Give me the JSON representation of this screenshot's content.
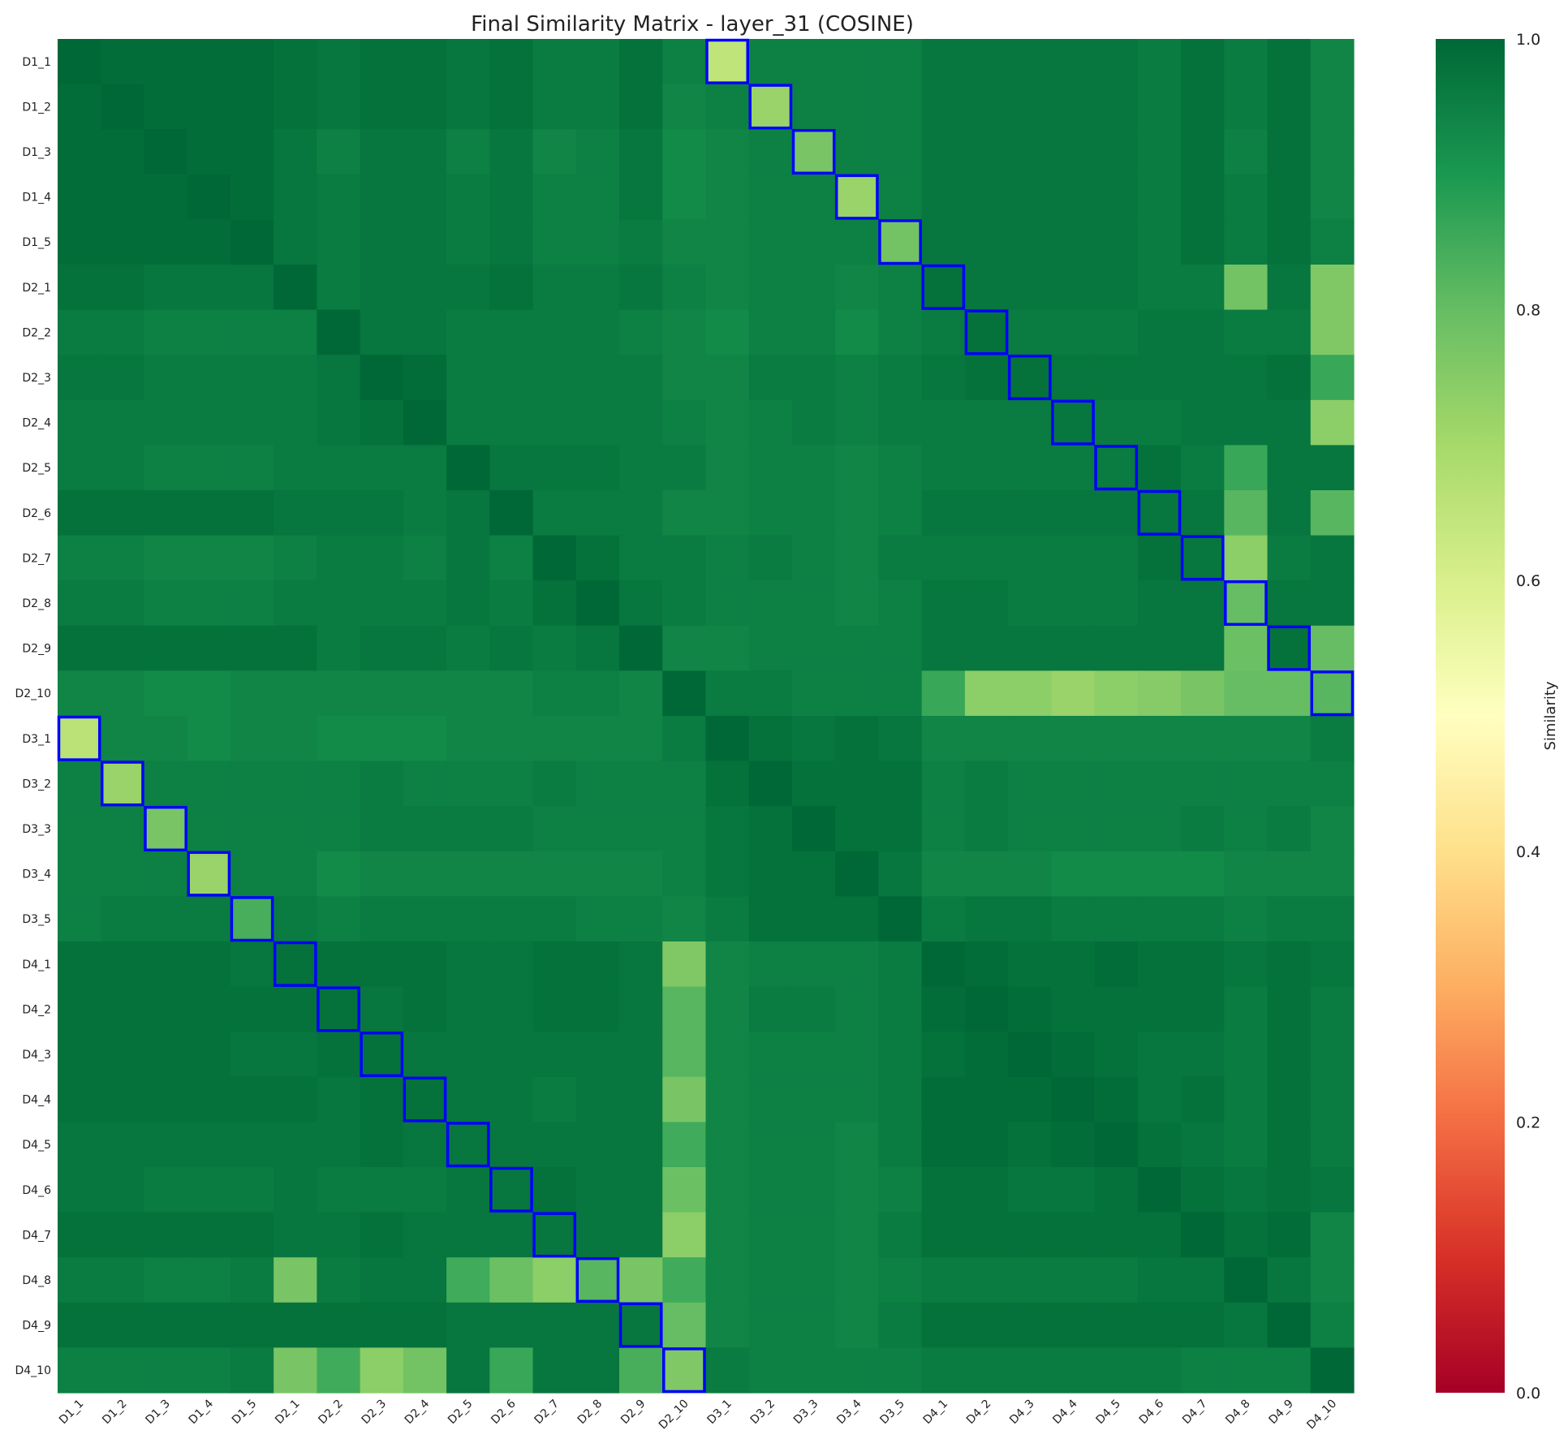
{
  "chart_data": {
    "type": "heatmap",
    "title": "Final Similarity Matrix - layer_31 (COSINE)",
    "x_labels": [
      "D1_1",
      "D1_2",
      "D1_3",
      "D1_4",
      "D1_5",
      "D2_1",
      "D2_2",
      "D2_3",
      "D2_4",
      "D2_5",
      "D2_6",
      "D2_7",
      "D2_8",
      "D2_9",
      "D2_10",
      "D3_1",
      "D3_2",
      "D3_3",
      "D3_4",
      "D3_5",
      "D4_1",
      "D4_2",
      "D4_3",
      "D4_4",
      "D4_5",
      "D4_6",
      "D4_7",
      "D4_8",
      "D4_9",
      "D4_10"
    ],
    "y_labels": [
      "D1_1",
      "D1_2",
      "D1_3",
      "D1_4",
      "D1_5",
      "D2_1",
      "D2_2",
      "D2_3",
      "D2_4",
      "D2_5",
      "D2_6",
      "D2_7",
      "D2_8",
      "D2_9",
      "D2_10",
      "D3_1",
      "D3_2",
      "D3_3",
      "D3_4",
      "D3_5",
      "D4_1",
      "D4_2",
      "D4_3",
      "D4_4",
      "D4_5",
      "D4_6",
      "D4_7",
      "D4_8",
      "D4_9",
      "D4_10"
    ],
    "values": [
      [
        1.0,
        0.99,
        0.99,
        0.99,
        0.99,
        0.98,
        0.97,
        0.98,
        0.98,
        0.97,
        0.98,
        0.96,
        0.96,
        0.98,
        0.95,
        0.65,
        0.95,
        0.95,
        0.95,
        0.95,
        0.97,
        0.97,
        0.97,
        0.97,
        0.97,
        0.96,
        0.98,
        0.96,
        0.98,
        0.94
      ],
      [
        0.99,
        1.0,
        0.99,
        0.99,
        0.99,
        0.98,
        0.97,
        0.98,
        0.98,
        0.97,
        0.98,
        0.96,
        0.96,
        0.98,
        0.94,
        0.95,
        0.72,
        0.95,
        0.95,
        0.95,
        0.97,
        0.97,
        0.97,
        0.97,
        0.97,
        0.96,
        0.98,
        0.96,
        0.98,
        0.94
      ],
      [
        0.99,
        0.99,
        1.0,
        0.99,
        0.99,
        0.97,
        0.95,
        0.97,
        0.97,
        0.95,
        0.97,
        0.94,
        0.95,
        0.97,
        0.93,
        0.94,
        0.95,
        0.77,
        0.95,
        0.95,
        0.97,
        0.97,
        0.97,
        0.97,
        0.97,
        0.96,
        0.98,
        0.95,
        0.98,
        0.94
      ],
      [
        0.99,
        0.99,
        0.99,
        1.0,
        0.99,
        0.97,
        0.96,
        0.97,
        0.97,
        0.96,
        0.97,
        0.95,
        0.95,
        0.97,
        0.93,
        0.94,
        0.95,
        0.95,
        0.72,
        0.95,
        0.97,
        0.97,
        0.97,
        0.97,
        0.97,
        0.96,
        0.98,
        0.96,
        0.98,
        0.94
      ],
      [
        0.99,
        0.99,
        0.99,
        0.99,
        1.0,
        0.97,
        0.96,
        0.97,
        0.97,
        0.96,
        0.97,
        0.95,
        0.95,
        0.96,
        0.94,
        0.94,
        0.95,
        0.95,
        0.95,
        0.78,
        0.97,
        0.97,
        0.97,
        0.97,
        0.97,
        0.96,
        0.98,
        0.96,
        0.98,
        0.95
      ],
      [
        0.98,
        0.98,
        0.97,
        0.97,
        0.97,
        1.0,
        0.96,
        0.97,
        0.97,
        0.97,
        0.98,
        0.96,
        0.96,
        0.97,
        0.95,
        0.94,
        0.95,
        0.95,
        0.94,
        0.95,
        0.98,
        0.97,
        0.97,
        0.97,
        0.97,
        0.96,
        0.96,
        0.78,
        0.97,
        0.76
      ],
      [
        0.96,
        0.96,
        0.95,
        0.95,
        0.95,
        0.95,
        1.0,
        0.97,
        0.97,
        0.96,
        0.96,
        0.96,
        0.96,
        0.95,
        0.94,
        0.93,
        0.95,
        0.95,
        0.93,
        0.95,
        0.96,
        0.98,
        0.96,
        0.96,
        0.96,
        0.97,
        0.97,
        0.96,
        0.96,
        0.76
      ],
      [
        0.97,
        0.97,
        0.96,
        0.96,
        0.96,
        0.96,
        0.97,
        1.0,
        0.99,
        0.96,
        0.96,
        0.96,
        0.96,
        0.96,
        0.94,
        0.94,
        0.96,
        0.96,
        0.95,
        0.96,
        0.97,
        0.98,
        0.98,
        0.97,
        0.97,
        0.97,
        0.97,
        0.97,
        0.98,
        0.86
      ],
      [
        0.96,
        0.96,
        0.96,
        0.96,
        0.96,
        0.96,
        0.97,
        0.98,
        1.0,
        0.96,
        0.96,
        0.96,
        0.96,
        0.96,
        0.95,
        0.94,
        0.95,
        0.96,
        0.95,
        0.96,
        0.96,
        0.96,
        0.96,
        0.97,
        0.96,
        0.96,
        0.97,
        0.97,
        0.97,
        0.74
      ],
      [
        0.96,
        0.96,
        0.95,
        0.95,
        0.95,
        0.96,
        0.96,
        0.96,
        0.96,
        1.0,
        0.97,
        0.97,
        0.97,
        0.96,
        0.96,
        0.94,
        0.95,
        0.95,
        0.94,
        0.95,
        0.96,
        0.96,
        0.96,
        0.96,
        0.96,
        0.98,
        0.96,
        0.86,
        0.97,
        0.97
      ],
      [
        0.98,
        0.98,
        0.98,
        0.98,
        0.98,
        0.97,
        0.97,
        0.97,
        0.96,
        0.97,
        1.0,
        0.96,
        0.96,
        0.96,
        0.94,
        0.94,
        0.95,
        0.95,
        0.94,
        0.95,
        0.97,
        0.97,
        0.97,
        0.97,
        0.97,
        0.97,
        0.97,
        0.82,
        0.97,
        0.82
      ],
      [
        0.95,
        0.95,
        0.94,
        0.94,
        0.94,
        0.95,
        0.96,
        0.96,
        0.95,
        0.97,
        0.95,
        1.0,
        0.98,
        0.96,
        0.96,
        0.95,
        0.96,
        0.95,
        0.94,
        0.96,
        0.96,
        0.96,
        0.96,
        0.96,
        0.96,
        0.98,
        0.97,
        0.74,
        0.96,
        0.97
      ],
      [
        0.96,
        0.96,
        0.95,
        0.95,
        0.95,
        0.96,
        0.96,
        0.96,
        0.96,
        0.97,
        0.96,
        0.98,
        1.0,
        0.97,
        0.96,
        0.95,
        0.95,
        0.95,
        0.94,
        0.95,
        0.97,
        0.97,
        0.96,
        0.96,
        0.96,
        0.97,
        0.97,
        0.8,
        0.97,
        0.97
      ],
      [
        0.98,
        0.98,
        0.98,
        0.98,
        0.98,
        0.98,
        0.96,
        0.97,
        0.97,
        0.96,
        0.97,
        0.96,
        0.97,
        1.0,
        0.94,
        0.94,
        0.95,
        0.95,
        0.95,
        0.95,
        0.97,
        0.97,
        0.97,
        0.97,
        0.97,
        0.97,
        0.97,
        0.79,
        0.98,
        0.8
      ],
      [
        0.94,
        0.94,
        0.93,
        0.93,
        0.94,
        0.94,
        0.94,
        0.94,
        0.94,
        0.94,
        0.94,
        0.95,
        0.95,
        0.94,
        1.0,
        0.96,
        0.96,
        0.95,
        0.95,
        0.95,
        0.86,
        0.74,
        0.74,
        0.72,
        0.74,
        0.75,
        0.77,
        0.8,
        0.8,
        0.82
      ],
      [
        0.66,
        0.94,
        0.94,
        0.93,
        0.94,
        0.94,
        0.93,
        0.93,
        0.93,
        0.94,
        0.94,
        0.94,
        0.94,
        0.94,
        0.96,
        1.0,
        0.98,
        0.97,
        0.98,
        0.97,
        0.94,
        0.94,
        0.94,
        0.94,
        0.94,
        0.94,
        0.94,
        0.94,
        0.94,
        0.96
      ],
      [
        0.95,
        0.72,
        0.95,
        0.95,
        0.95,
        0.95,
        0.95,
        0.96,
        0.95,
        0.95,
        0.95,
        0.96,
        0.95,
        0.95,
        0.95,
        0.98,
        1.0,
        0.98,
        0.98,
        0.98,
        0.95,
        0.96,
        0.95,
        0.95,
        0.95,
        0.95,
        0.95,
        0.95,
        0.95,
        0.95
      ],
      [
        0.95,
        0.95,
        0.77,
        0.95,
        0.95,
        0.95,
        0.95,
        0.96,
        0.96,
        0.96,
        0.96,
        0.95,
        0.95,
        0.95,
        0.95,
        0.97,
        0.98,
        1.0,
        0.98,
        0.98,
        0.95,
        0.96,
        0.95,
        0.95,
        0.95,
        0.95,
        0.96,
        0.95,
        0.96,
        0.94
      ],
      [
        0.95,
        0.95,
        0.95,
        0.72,
        0.95,
        0.95,
        0.93,
        0.94,
        0.94,
        0.94,
        0.94,
        0.94,
        0.94,
        0.94,
        0.95,
        0.97,
        0.98,
        0.98,
        1.0,
        0.97,
        0.94,
        0.94,
        0.94,
        0.93,
        0.93,
        0.93,
        0.93,
        0.94,
        0.94,
        0.94
      ],
      [
        0.95,
        0.96,
        0.96,
        0.96,
        0.84,
        0.96,
        0.95,
        0.96,
        0.96,
        0.96,
        0.96,
        0.96,
        0.95,
        0.95,
        0.94,
        0.96,
        0.98,
        0.98,
        0.98,
        1.0,
        0.96,
        0.97,
        0.97,
        0.96,
        0.96,
        0.96,
        0.96,
        0.95,
        0.96,
        0.96
      ],
      [
        0.98,
        0.98,
        0.98,
        0.98,
        0.97,
        0.98,
        0.98,
        0.98,
        0.98,
        0.97,
        0.97,
        0.98,
        0.98,
        0.97,
        0.76,
        0.94,
        0.95,
        0.95,
        0.95,
        0.96,
        1.0,
        0.99,
        0.98,
        0.98,
        0.99,
        0.98,
        0.98,
        0.97,
        0.98,
        0.97
      ],
      [
        0.98,
        0.98,
        0.98,
        0.98,
        0.98,
        0.98,
        0.98,
        0.97,
        0.98,
        0.97,
        0.97,
        0.98,
        0.98,
        0.97,
        0.82,
        0.94,
        0.96,
        0.96,
        0.95,
        0.96,
        0.99,
        1.0,
        0.99,
        0.98,
        0.98,
        0.98,
        0.98,
        0.96,
        0.98,
        0.96
      ],
      [
        0.98,
        0.98,
        0.98,
        0.98,
        0.97,
        0.97,
        0.98,
        0.98,
        0.97,
        0.97,
        0.97,
        0.97,
        0.97,
        0.97,
        0.82,
        0.94,
        0.95,
        0.95,
        0.95,
        0.96,
        0.98,
        0.99,
        1.0,
        0.99,
        0.98,
        0.97,
        0.97,
        0.96,
        0.98,
        0.96
      ],
      [
        0.98,
        0.98,
        0.98,
        0.98,
        0.98,
        0.98,
        0.97,
        0.98,
        0.98,
        0.97,
        0.97,
        0.96,
        0.97,
        0.97,
        0.77,
        0.94,
        0.95,
        0.95,
        0.95,
        0.96,
        0.99,
        0.99,
        0.99,
        1.0,
        0.99,
        0.97,
        0.98,
        0.96,
        0.98,
        0.96
      ],
      [
        0.97,
        0.97,
        0.97,
        0.97,
        0.97,
        0.97,
        0.97,
        0.98,
        0.97,
        0.97,
        0.97,
        0.97,
        0.97,
        0.97,
        0.85,
        0.94,
        0.95,
        0.95,
        0.94,
        0.96,
        0.99,
        0.99,
        0.98,
        0.99,
        1.0,
        0.98,
        0.97,
        0.96,
        0.98,
        0.96
      ],
      [
        0.97,
        0.97,
        0.96,
        0.96,
        0.96,
        0.97,
        0.96,
        0.96,
        0.96,
        0.97,
        0.97,
        0.98,
        0.97,
        0.97,
        0.79,
        0.94,
        0.95,
        0.95,
        0.94,
        0.95,
        0.98,
        0.98,
        0.97,
        0.97,
        0.98,
        1.0,
        0.98,
        0.97,
        0.98,
        0.97
      ],
      [
        0.98,
        0.98,
        0.98,
        0.98,
        0.98,
        0.97,
        0.97,
        0.98,
        0.97,
        0.97,
        0.97,
        0.97,
        0.97,
        0.97,
        0.74,
        0.94,
        0.95,
        0.95,
        0.94,
        0.96,
        0.98,
        0.98,
        0.98,
        0.98,
        0.98,
        0.98,
        1.0,
        0.98,
        0.99,
        0.94
      ],
      [
        0.96,
        0.96,
        0.95,
        0.95,
        0.96,
        0.77,
        0.96,
        0.97,
        0.97,
        0.85,
        0.79,
        0.74,
        0.82,
        0.77,
        0.85,
        0.94,
        0.95,
        0.95,
        0.94,
        0.95,
        0.96,
        0.96,
        0.96,
        0.96,
        0.96,
        0.97,
        0.97,
        1.0,
        0.97,
        0.94
      ],
      [
        0.98,
        0.98,
        0.98,
        0.98,
        0.98,
        0.98,
        0.98,
        0.98,
        0.98,
        0.97,
        0.97,
        0.97,
        0.97,
        0.97,
        0.8,
        0.94,
        0.95,
        0.95,
        0.94,
        0.96,
        0.98,
        0.98,
        0.98,
        0.98,
        0.98,
        0.98,
        0.98,
        0.97,
        1.0,
        0.95
      ],
      [
        0.95,
        0.95,
        0.95,
        0.95,
        0.96,
        0.77,
        0.85,
        0.74,
        0.78,
        0.97,
        0.86,
        0.97,
        0.97,
        0.84,
        0.76,
        0.96,
        0.95,
        0.95,
        0.95,
        0.95,
        0.96,
        0.96,
        0.96,
        0.96,
        0.96,
        0.96,
        0.95,
        0.95,
        0.95,
        1.0
      ]
    ],
    "highlighted_cells": [
      [
        0,
        15
      ],
      [
        1,
        16
      ],
      [
        2,
        17
      ],
      [
        3,
        18
      ],
      [
        4,
        19
      ],
      [
        5,
        20
      ],
      [
        6,
        21
      ],
      [
        7,
        22
      ],
      [
        8,
        23
      ],
      [
        9,
        24
      ],
      [
        10,
        25
      ],
      [
        11,
        26
      ],
      [
        12,
        27
      ],
      [
        13,
        28
      ],
      [
        14,
        29
      ],
      [
        15,
        0
      ],
      [
        16,
        1
      ],
      [
        17,
        2
      ],
      [
        18,
        3
      ],
      [
        19,
        4
      ],
      [
        20,
        5
      ],
      [
        21,
        6
      ],
      [
        22,
        7
      ],
      [
        23,
        8
      ],
      [
        24,
        9
      ],
      [
        25,
        10
      ],
      [
        26,
        11
      ],
      [
        27,
        12
      ],
      [
        28,
        13
      ],
      [
        29,
        14
      ]
    ],
    "highlight_color": "#0000ff",
    "colormap": "RdYlGn",
    "vmin": 0.0,
    "vmax": 1.0,
    "colorbar": {
      "label": "Similarity",
      "ticks": [
        0.0,
        0.2,
        0.4,
        0.6,
        0.8,
        1.0
      ],
      "tick_labels": [
        "0.0",
        "0.2",
        "0.4",
        "0.6",
        "0.8",
        "1.0"
      ]
    },
    "grid": false
  }
}
